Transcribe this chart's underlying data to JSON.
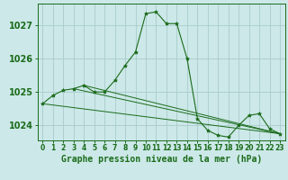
{
  "background_color": "#cce8e8",
  "grid_color": "#aacccc",
  "line_color": "#1a6b1a",
  "marker_color": "#1a6b1a",
  "xlabel": "Graphe pression niveau de la mer (hPa)",
  "xlabel_fontsize": 7,
  "ytick_fontsize": 7,
  "xtick_fontsize": 5.5,
  "yticks": [
    1024,
    1025,
    1026,
    1027
  ],
  "xticks": [
    0,
    1,
    2,
    3,
    4,
    5,
    6,
    7,
    8,
    9,
    10,
    11,
    12,
    13,
    14,
    15,
    16,
    17,
    18,
    19,
    20,
    21,
    22,
    23
  ],
  "xlim": [
    -0.5,
    23.5
  ],
  "ylim": [
    1023.55,
    1027.65
  ],
  "series": [
    {
      "x": [
        0,
        1,
        2,
        3,
        4,
        5,
        6,
        7,
        8,
        9,
        10,
        11,
        12,
        13,
        14,
        15,
        16,
        17,
        18,
        19,
        20,
        21,
        22,
        23
      ],
      "y": [
        1024.65,
        1024.9,
        1025.05,
        1025.1,
        1025.2,
        1025.0,
        1025.0,
        1025.35,
        1025.8,
        1026.2,
        1027.35,
        1027.4,
        1027.05,
        1027.05,
        1026.0,
        1024.2,
        1023.85,
        1023.7,
        1023.65,
        1024.0,
        1024.3,
        1024.35,
        1023.9,
        1023.75
      ]
    },
    {
      "x": [
        0,
        23
      ],
      "y": [
        1024.65,
        1023.75
      ]
    },
    {
      "x": [
        3,
        23
      ],
      "y": [
        1025.1,
        1023.75
      ]
    },
    {
      "x": [
        4,
        23
      ],
      "y": [
        1025.2,
        1023.75
      ]
    }
  ]
}
